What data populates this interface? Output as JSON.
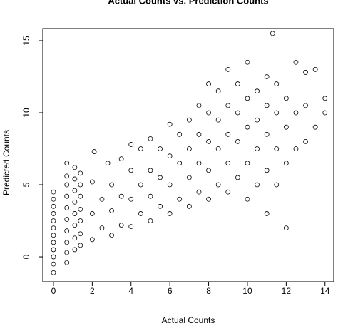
{
  "chart_data": {
    "type": "scatter",
    "title": "Actual Counts vs. Prediction Counts",
    "xlabel": "Actual Counts",
    "ylabel": "Predicted Counts",
    "x": [
      0,
      0,
      0,
      0,
      0,
      0,
      0,
      0,
      0,
      0,
      0,
      0,
      0.69,
      0.69,
      0.69,
      0.69,
      0.69,
      0.69,
      0.69,
      0.69,
      0.69,
      0.69,
      1.1,
      1.1,
      1.1,
      1.1,
      1.1,
      1.1,
      1.1,
      1.1,
      1.39,
      1.39,
      1.39,
      1.39,
      1.39,
      1.39,
      1.39,
      2,
      2,
      2,
      2.1,
      2.5,
      2.5,
      2.8,
      3,
      3,
      3,
      3.5,
      3.5,
      3.5,
      4,
      4,
      4,
      4,
      4.5,
      4.5,
      4.5,
      5,
      5,
      5,
      5,
      5.5,
      5.5,
      5.5,
      6,
      6,
      6,
      6,
      6.5,
      6.5,
      6.5,
      7,
      7,
      7,
      7,
      7.5,
      7.5,
      7.5,
      7.5,
      8,
      8,
      8,
      8,
      8,
      8.5,
      8.5,
      8.5,
      8.5,
      9,
      9,
      9,
      9,
      9,
      9.5,
      9.5,
      9.5,
      9.5,
      10,
      10,
      10,
      10,
      10,
      10.5,
      10.5,
      10.5,
      10.5,
      11,
      11,
      11,
      11,
      11,
      11.3,
      11.5,
      11.5,
      11.5,
      11.5,
      12,
      12,
      12,
      12,
      12.5,
      12.5,
      12.5,
      13,
      13,
      13,
      13.5,
      13.5,
      14,
      14
    ],
    "values": [
      -1.1,
      -0.5,
      0,
      0.5,
      1,
      1.5,
      2,
      2.5,
      3,
      3.5,
      4,
      4.5,
      -0.4,
      0.3,
      1,
      1.8,
      2.6,
      3.4,
      4.2,
      5,
      5.6,
      6.5,
      0.5,
      1.3,
      2.2,
      3,
      3.8,
      4.6,
      5.4,
      6.2,
      0.8,
      1.6,
      2.5,
      3.3,
      4.2,
      5,
      5.8,
      1.2,
      3,
      5.2,
      7.3,
      2,
      4,
      6.5,
      1.5,
      3.2,
      5,
      2.2,
      4.2,
      6.8,
      2.1,
      4,
      6,
      7.8,
      3,
      5,
      7.5,
      2.5,
      4.2,
      6,
      8.2,
      3.5,
      5.5,
      7.5,
      3,
      5,
      7,
      9.2,
      4,
      6.5,
      8.5,
      3.5,
      5.5,
      7.5,
      9.5,
      4.5,
      6.5,
      8.5,
      10.5,
      4,
      6,
      8,
      10,
      12,
      5,
      7.5,
      9.5,
      11.5,
      4.5,
      6.5,
      8.5,
      10.5,
      13,
      5.5,
      8,
      10,
      12,
      4,
      6.5,
      9,
      11,
      13.5,
      5,
      7.5,
      9.5,
      11.5,
      3,
      6,
      8.5,
      10.5,
      12.5,
      15.5,
      5,
      7.5,
      10,
      12,
      2,
      6.5,
      9,
      11,
      7.5,
      10,
      13.5,
      8,
      10.5,
      12.8,
      9,
      13,
      10,
      11
    ],
    "color": "#000000",
    "xlim": [
      -0.55,
      14.45
    ],
    "ylim": [
      -1.73,
      15.84
    ],
    "xticks": [
      0,
      2,
      4,
      6,
      8,
      10,
      12,
      14
    ],
    "yticks": [
      0,
      5,
      10,
      15
    ]
  }
}
